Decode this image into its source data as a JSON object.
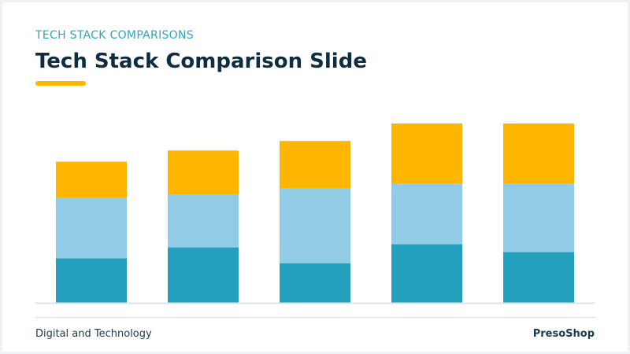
{
  "slide": {
    "eyebrow": "TECH STACK COMPARISONS",
    "title": "Tech Stack Comparison Slide",
    "footer_left": "Digital and Technology",
    "footer_right": "PresoShop",
    "accent_color": "#ffb600"
  },
  "chart_data": {
    "type": "bar",
    "stacked": true,
    "categories": [
      "",
      "",
      "",
      "",
      ""
    ],
    "series": [
      {
        "values": [
          28,
          35,
          25,
          37,
          32
        ],
        "color": "#24a0bf"
      },
      {
        "values": [
          38,
          33,
          47,
          38,
          43
        ],
        "color": "#91cbe6"
      },
      {
        "values": [
          23,
          28,
          30,
          38,
          38
        ],
        "color": "#ffb600"
      }
    ],
    "ylim": [
      0,
      115
    ],
    "grid": false,
    "legend": "none",
    "baseline_color": "#d9e4ea"
  }
}
